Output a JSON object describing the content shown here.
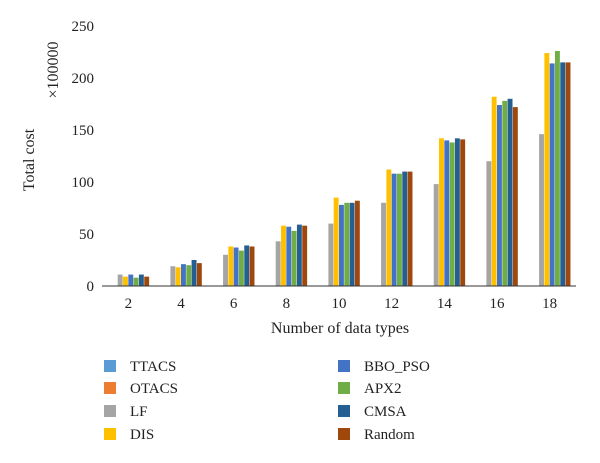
{
  "chart_data": {
    "type": "bar",
    "xlabel": "Number of data types",
    "ylabel": "Total cost",
    "y_multiplier": "×100000",
    "ylim": [
      0,
      250
    ],
    "yticks": [
      0,
      50,
      100,
      150,
      200,
      250
    ],
    "grid": false,
    "legend_placement": "bottom",
    "categories": [
      "2",
      "4",
      "6",
      "8",
      "10",
      "12",
      "14",
      "16",
      "18"
    ],
    "series": [
      {
        "name": "TTACS",
        "color": "#5b9bd5",
        "values": [
          0,
          0,
          0,
          0,
          0,
          0,
          0,
          0,
          0
        ]
      },
      {
        "name": "OTACS",
        "color": "#ed7d31",
        "values": [
          0,
          0,
          0,
          0,
          0,
          0,
          0,
          0,
          0
        ]
      },
      {
        "name": "LF",
        "color": "#a5a5a5",
        "values": [
          11,
          19,
          30,
          43,
          60,
          80,
          98,
          120,
          146
        ]
      },
      {
        "name": "DIS",
        "color": "#ffc000",
        "values": [
          9,
          18,
          38,
          58,
          85,
          112,
          142,
          182,
          224
        ]
      },
      {
        "name": "BBO_PSO",
        "color": "#4472c4",
        "values": [
          11,
          21,
          37,
          57,
          78,
          108,
          140,
          174,
          214
        ]
      },
      {
        "name": "APX2",
        "color": "#70ad47",
        "values": [
          8,
          20,
          34,
          53,
          80,
          108,
          138,
          178,
          226
        ]
      },
      {
        "name": "CMSA",
        "color": "#255e91",
        "values": [
          11,
          25,
          39,
          59,
          80,
          110,
          142,
          180,
          215
        ]
      },
      {
        "name": "Random",
        "color": "#9e480e",
        "values": [
          9,
          22,
          38,
          58,
          82,
          110,
          141,
          172,
          215
        ]
      }
    ]
  }
}
